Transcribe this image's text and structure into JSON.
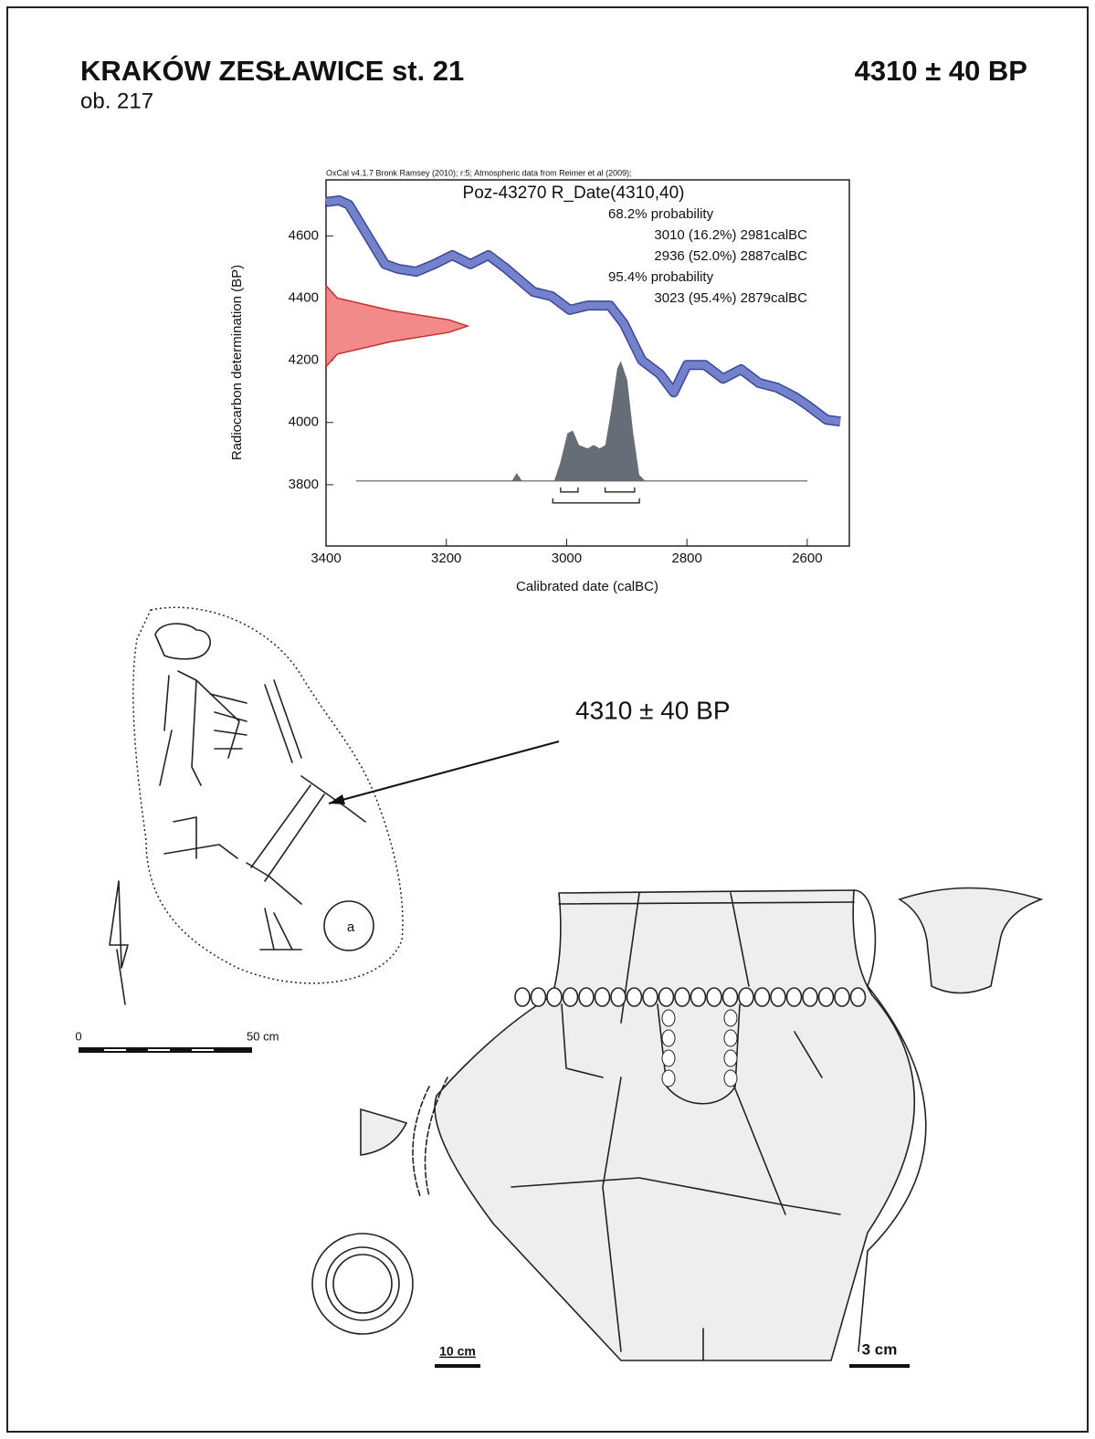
{
  "header": {
    "title": "KRAKÓW ZESŁAWICE st. 21",
    "subtitle": "ob. 217",
    "date": "4310 ± 40 BP"
  },
  "chart_data": {
    "type": "oxcal",
    "caption": "OxCal v4.1.7 Bronk Ramsey (2010); r:5; Atmospheric data from Reimer et al (2009);",
    "title": "Poz-43270 R_Date(4310,40)",
    "probability_labels": [
      "68.2% probability",
      "95.4% probability"
    ],
    "ranges": [
      {
        "from": 3010,
        "to": 2981,
        "label": "3010 (16.2%) 2981calBC",
        "level": 0
      },
      {
        "from": 2936,
        "to": 2887,
        "label": "2936 (52.0%) 2887calBC",
        "level": 0
      },
      {
        "from": 3023,
        "to": 2879,
        "label": "3023 (95.4%) 2879calBC",
        "level": 1
      }
    ],
    "x_label": "Calibrated date (calBC)",
    "y_label": "Radiocarbon determination (BP)",
    "xlim": [
      3400,
      2530
    ],
    "ylim": [
      3603,
      4780
    ],
    "xticks": [
      3400,
      3200,
      3000,
      2800,
      2600
    ],
    "yticks": [
      3800,
      4000,
      4200,
      4400,
      4600
    ],
    "calibration_curve": {
      "color": "#7482cc",
      "x": [
        3400,
        3378,
        3362,
        3325,
        3302,
        3280,
        3250,
        3220,
        3190,
        3160,
        3130,
        3100,
        3055,
        3025,
        2995,
        2965,
        2928,
        2905,
        2875,
        2845,
        2822,
        2800,
        2770,
        2740,
        2710,
        2680,
        2650,
        2620,
        2598,
        2568,
        2545
      ],
      "y": [
        4709,
        4714,
        4700,
        4582,
        4509,
        4494,
        4485,
        4509,
        4538,
        4509,
        4538,
        4494,
        4420,
        4406,
        4362,
        4376,
        4376,
        4318,
        4200,
        4156,
        4097,
        4185,
        4185,
        4141,
        4171,
        4127,
        4112,
        4082,
        4053,
        4009,
        4003
      ]
    },
    "measurement": {
      "color": "#f28a8a",
      "y": [
        4440,
        4400,
        4360,
        4330,
        4310,
        4290,
        4260,
        4220,
        4180
      ],
      "density": [
        0,
        0.08,
        0.46,
        0.87,
        1,
        0.87,
        0.46,
        0.08,
        0
      ]
    },
    "posterior": {
      "color": "#676d76",
      "baseline": 3812,
      "x": [
        3350,
        3090,
        3083,
        3075,
        3020,
        3010,
        2998,
        2990,
        2980,
        2965,
        2955,
        2945,
        2935,
        2925,
        2915,
        2910,
        2900,
        2890,
        2880,
        2870,
        2600
      ],
      "density": [
        0,
        0,
        0.06,
        0,
        0,
        0.15,
        0.4,
        0.42,
        0.3,
        0.27,
        0.3,
        0.27,
        0.3,
        0.6,
        0.95,
        1,
        0.85,
        0.4,
        0.05,
        0,
        0
      ]
    }
  },
  "figures": {
    "arrow_label": "4310 ± 40 BP",
    "pit_label": "a",
    "scale_start": "0",
    "scale_end": "50 cm",
    "pot_scale": "10 cm",
    "profile_scale": "3 cm"
  }
}
